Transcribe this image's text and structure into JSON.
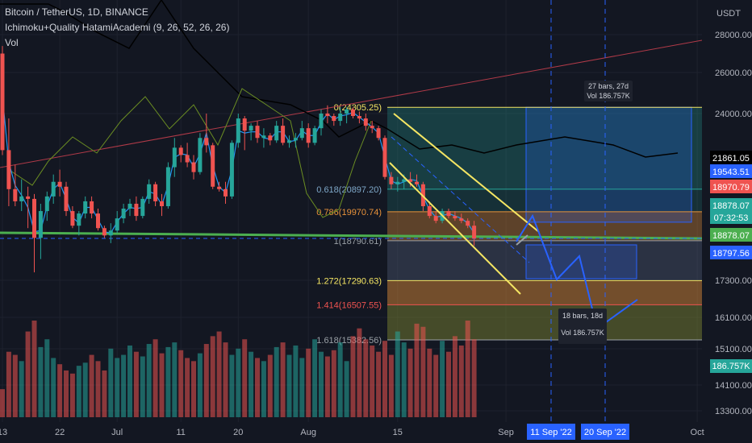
{
  "header": {
    "symbol": "Bitcoin / TetherUS, 1D, BINANCE",
    "indicator": "Ichimoku+Quality HatamiAcademi (9, 26, 52, 26, 26)",
    "volume_label": "Vol"
  },
  "colors": {
    "background": "#131722",
    "up": "#26a69a",
    "down": "#ef5350",
    "conversion_line": "#2196f3",
    "green_line": "#6b8e23",
    "black_line": "#000000",
    "trend_line": "#b03a48",
    "fib_0": "#f5e663",
    "fib_786": "#e8923a",
    "fib_1272": "#f5e663",
    "fib_1414": "#ef5350",
    "projection": "#2962ff",
    "support": "#4caf50"
  },
  "chart_data": {
    "type": "candlestick",
    "y_axis_unit": "USDT",
    "ylim": [
      13300,
      28800
    ],
    "y_ticks": [
      28000,
      26000,
      24000,
      17300,
      16100,
      15100,
      14100,
      13300
    ],
    "x_ticks": [
      "13",
      "22",
      "Jul",
      "11",
      "20",
      "Aug",
      "15",
      "Sep",
      "Oct"
    ],
    "x_tick_days": [
      0,
      9,
      18,
      28,
      37,
      48,
      62,
      79,
      109
    ],
    "candles_ohlc": [
      [
        27000,
        27400,
        22300,
        22500
      ],
      [
        22500,
        23800,
        20200,
        20900
      ],
      [
        20900,
        21900,
        20200,
        20400
      ],
      [
        20400,
        21300,
        20000,
        20600
      ],
      [
        20600,
        21000,
        19300,
        20500
      ],
      [
        20500,
        20700,
        17600,
        18900
      ],
      [
        18900,
        20300,
        18100,
        20000
      ],
      [
        20000,
        20800,
        19600,
        20600
      ],
      [
        20600,
        21500,
        20300,
        21200
      ],
      [
        21200,
        21700,
        20600,
        21000
      ],
      [
        21000,
        21200,
        19800,
        20000
      ],
      [
        20000,
        20200,
        19300,
        19400
      ],
      [
        19400,
        20000,
        19000,
        19900
      ],
      [
        19900,
        20600,
        19700,
        20400
      ],
      [
        20400,
        20600,
        19700,
        19900
      ],
      [
        19900,
        20100,
        19200,
        19300
      ],
      [
        19300,
        19400,
        18900,
        19000
      ],
      [
        19000,
        19500,
        18700,
        19200
      ],
      [
        19200,
        20000,
        19100,
        19700
      ],
      [
        19700,
        20300,
        19500,
        20100
      ],
      [
        20100,
        20500,
        19800,
        20300
      ],
      [
        20300,
        20600,
        19600,
        19800
      ],
      [
        19800,
        20600,
        19700,
        20500
      ],
      [
        20500,
        21300,
        20300,
        21100
      ],
      [
        21100,
        21200,
        20200,
        20400
      ],
      [
        20400,
        20700,
        19800,
        20200
      ],
      [
        20200,
        22000,
        20100,
        21800
      ],
      [
        21800,
        23000,
        21400,
        22600
      ],
      [
        22600,
        22700,
        22000,
        22300
      ],
      [
        22300,
        22800,
        21800,
        22000
      ],
      [
        22000,
        22300,
        21300,
        21600
      ],
      [
        21600,
        23200,
        21500,
        23000
      ],
      [
        23000,
        24000,
        22400,
        22700
      ],
      [
        22700,
        22800,
        20900,
        21000
      ],
      [
        21000,
        21200,
        20800,
        20900
      ],
      [
        20900,
        21200,
        20300,
        20600
      ],
      [
        20600,
        22900,
        20500,
        22800
      ],
      [
        22800,
        24000,
        22600,
        23800
      ],
      [
        23800,
        23900,
        22500,
        23300
      ],
      [
        23300,
        23600,
        22900,
        23500
      ],
      [
        23500,
        23700,
        22800,
        23000
      ],
      [
        23000,
        23400,
        22600,
        23100
      ],
      [
        23100,
        23200,
        22700,
        22900
      ],
      [
        22900,
        23700,
        22800,
        23500
      ],
      [
        23500,
        23800,
        22700,
        22800
      ],
      [
        22800,
        23100,
        22600,
        22900
      ],
      [
        22900,
        23200,
        22600,
        23000
      ],
      [
        23000,
        23700,
        22900,
        23400
      ],
      [
        23400,
        23600,
        22600,
        22800
      ],
      [
        22800,
        23500,
        22700,
        23400
      ],
      [
        23400,
        24200,
        23100,
        24000
      ],
      [
        24000,
        24400,
        23600,
        23900
      ],
      [
        23900,
        24000,
        23500,
        23700
      ],
      [
        23700,
        24300,
        23500,
        24000
      ],
      [
        24000,
        24305,
        23600,
        24200
      ],
      [
        24200,
        24300,
        23800,
        23900
      ],
      [
        23900,
        24100,
        23600,
        23800
      ],
      [
        23800,
        24000,
        23300,
        23500
      ],
      [
        23500,
        23700,
        23200,
        23400
      ],
      [
        23400,
        23500,
        22900,
        23000
      ],
      [
        23000,
        23100,
        21300,
        21400
      ],
      [
        21400,
        21600,
        20900,
        21100
      ],
      [
        21100,
        21400,
        20800,
        21200
      ],
      [
        21200,
        21500,
        20900,
        21300
      ],
      [
        21300,
        21600,
        21000,
        21200
      ],
      [
        21200,
        21500,
        21000,
        21100
      ],
      [
        21100,
        21200,
        20000,
        20200
      ],
      [
        20200,
        20400,
        19700,
        19800
      ],
      [
        19800,
        20000,
        19500,
        19600
      ],
      [
        19600,
        20100,
        19500,
        20000
      ],
      [
        20000,
        20100,
        19700,
        19800
      ],
      [
        19800,
        20000,
        19600,
        19700
      ],
      [
        19700,
        19900,
        19500,
        19600
      ],
      [
        19600,
        19700,
        19300,
        19400
      ],
      [
        19400,
        19600,
        18600,
        18878
      ]
    ],
    "volume": [
      18,
      42,
      40,
      36,
      55,
      62,
      45,
      50,
      38,
      34,
      30,
      28,
      33,
      35,
      40,
      36,
      30,
      44,
      38,
      40,
      46,
      42,
      39,
      47,
      50,
      41,
      45,
      48,
      43,
      38,
      36,
      41,
      47,
      52,
      55,
      48,
      40,
      44,
      50,
      42,
      38,
      36,
      40,
      45,
      48,
      40,
      46,
      38,
      44,
      50,
      42,
      39,
      43,
      48,
      36,
      52,
      57,
      50,
      46,
      42,
      49,
      40,
      55,
      48,
      44,
      60,
      58,
      44,
      40,
      49,
      42,
      52,
      46,
      62,
      50
    ],
    "fib_levels": [
      {
        "label": "0(24305.25)",
        "price": 24305.25
      },
      {
        "label": "0.618(20897.20)",
        "price": 20897.2
      },
      {
        "label": "0.786(19970.74)",
        "price": 19970.74
      },
      {
        "label": "1(18790.61)",
        "price": 18790.61
      },
      {
        "label": "1.272(17290.63)",
        "price": 17290.63
      },
      {
        "label": "1.414(16507.55)",
        "price": 16507.55
      },
      {
        "label": "1.618(15382.56)",
        "price": 15382.56
      }
    ],
    "price_badges": [
      {
        "price": 21861.05,
        "text": "21861.05",
        "bg": "#000000"
      },
      {
        "price": 19543.51,
        "text": "19543.51",
        "bg": "#2962ff"
      },
      {
        "price": 18970.79,
        "text": "18970.79",
        "bg": "#ef5350"
      },
      {
        "price": 18878.07,
        "text": "18878.07",
        "bg": "#26a69a"
      },
      {
        "price": 18878.07,
        "text": "07:32:53",
        "bg": "#26a69a"
      },
      {
        "price": 18878.07,
        "text": "18878.07",
        "bg": "#4caf50"
      },
      {
        "price": 18797.56,
        "text": "18797.56",
        "bg": "#2962ff"
      }
    ],
    "volume_badge": "186.757K",
    "measure_boxes": [
      {
        "bars": "27 bars, 27d",
        "vol": "Vol 186.757K"
      },
      {
        "bars": "18 bars, 18d",
        "vol": "Vol 186.757K"
      }
    ],
    "date_badges": [
      "11 Sep '22",
      "20 Sep '22"
    ]
  }
}
